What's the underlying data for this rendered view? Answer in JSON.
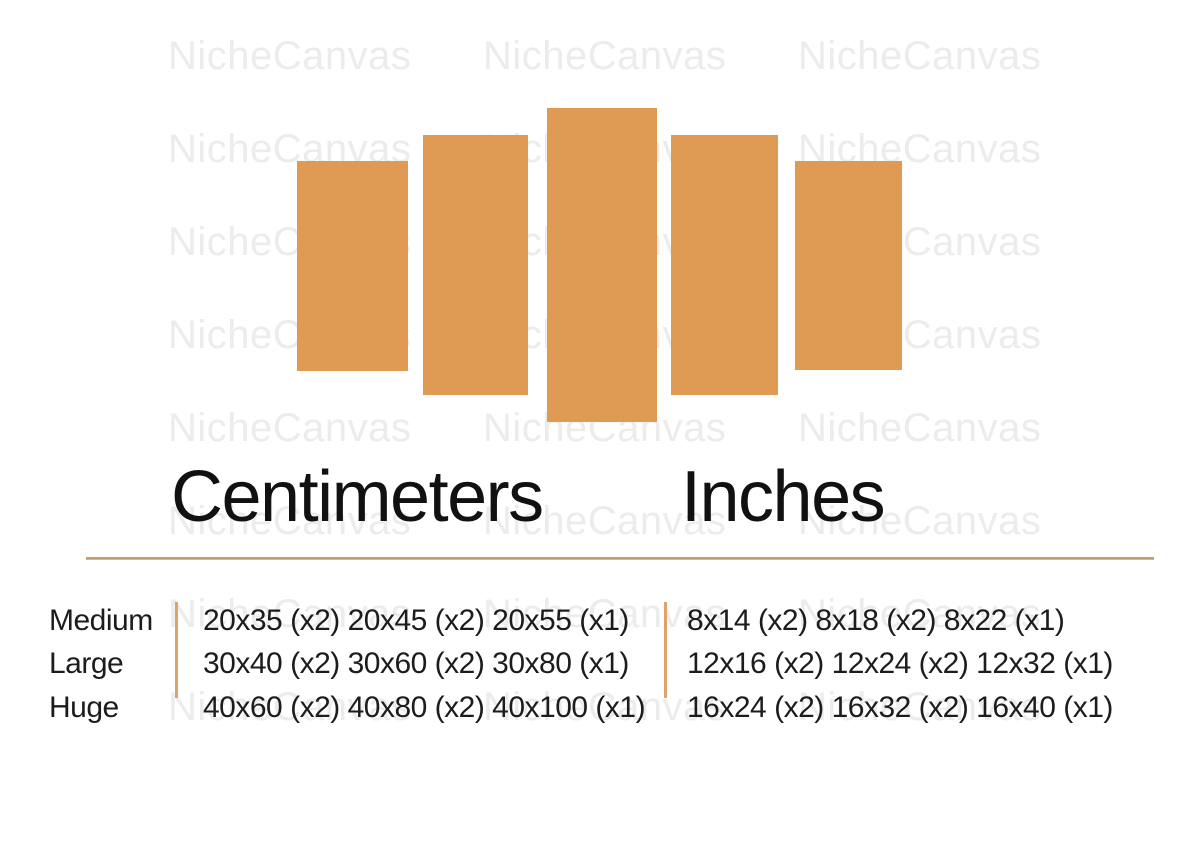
{
  "watermark": {
    "text": "NicheCanvas"
  },
  "colors": {
    "background": "#ffffff",
    "panel_orange": "#df9a54",
    "watermark_gray": "#ececec",
    "divider_orange": "#dca46b",
    "rule_tan": "#bfa173",
    "heading_text": "#111111",
    "table_text": "#1c1c1c"
  },
  "diagram": {
    "panel_count": 5,
    "panels": [
      {
        "id": "panel-1",
        "relative_size": "short"
      },
      {
        "id": "panel-2",
        "relative_size": "medium"
      },
      {
        "id": "panel-3",
        "relative_size": "tall"
      },
      {
        "id": "panel-4",
        "relative_size": "medium"
      },
      {
        "id": "panel-5",
        "relative_size": "short"
      }
    ]
  },
  "size_guide": {
    "heading_centimeters": "Centimeters",
    "heading_inches": "Inches",
    "rows": [
      {
        "label": "Medium",
        "centimeters": "20x35 (x2) 20x45 (x2) 20x55 (x1)",
        "inches": "8x14 (x2) 8x18 (x2) 8x22 (x1)"
      },
      {
        "label": "Large",
        "centimeters": "30x40 (x2) 30x60 (x2) 30x80 (x1)",
        "inches": "12x16 (x2) 12x24 (x2) 12x32 (x1)"
      },
      {
        "label": "Huge",
        "centimeters": "40x60 (x2) 40x80 (x2) 40x100 (x1)",
        "inches": "16x24 (x2) 16x32 (x2) 16x40 (x1)"
      }
    ]
  }
}
